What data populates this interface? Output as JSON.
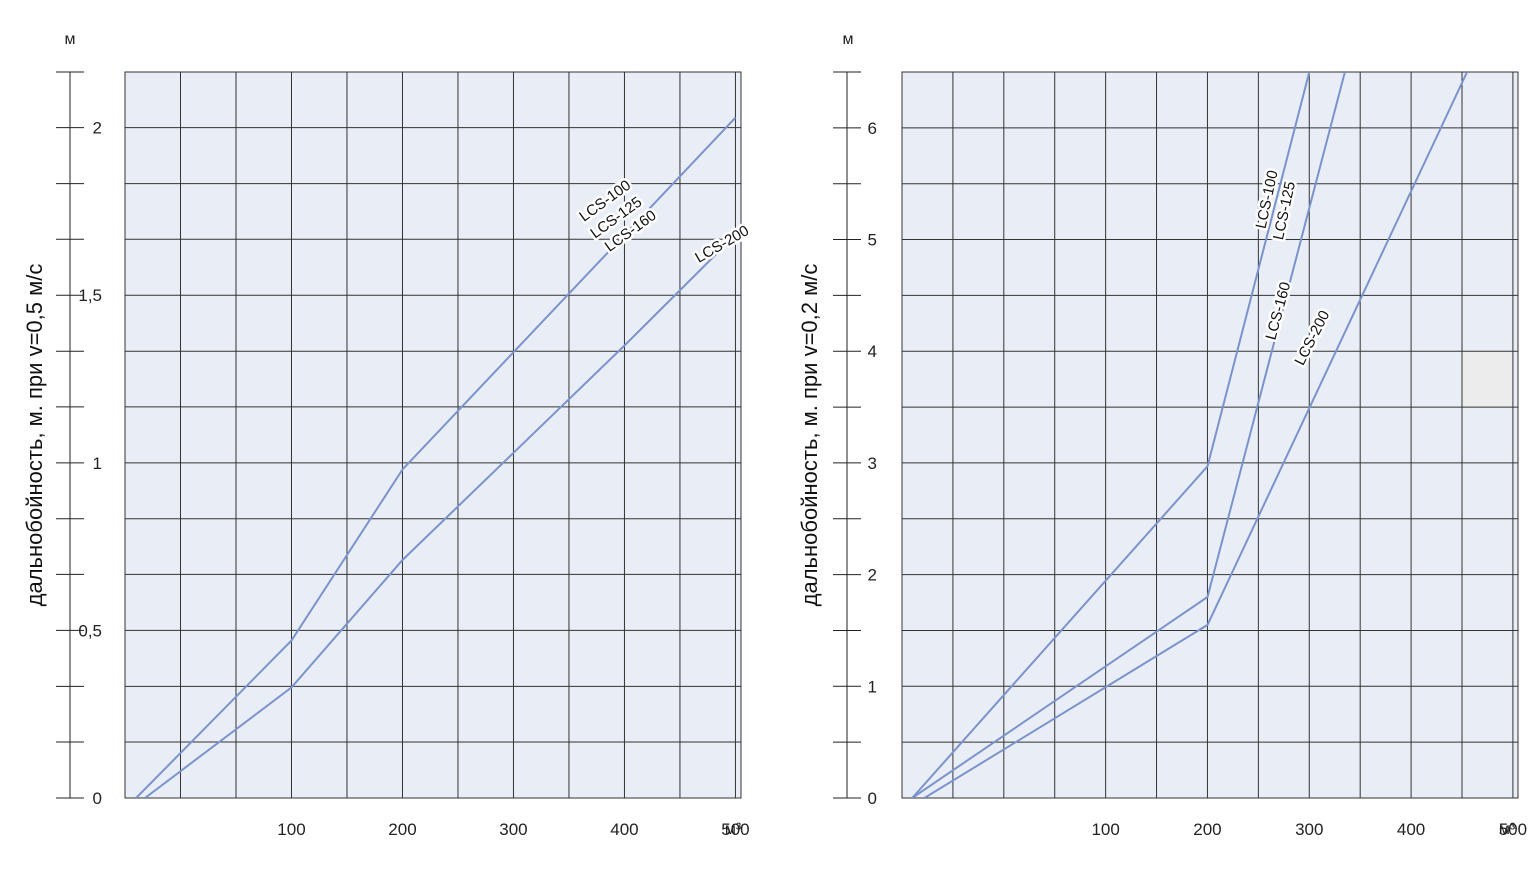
{
  "colors": {
    "plot_bg": "#e9eef6",
    "grid": "#333333",
    "line": "#7b93cc",
    "axis": "#222222",
    "highlight_cell": "#ececec"
  },
  "chart_data": [
    {
      "type": "line",
      "ylabel": "дальнобойность, м. при v=0,5 м/с",
      "y_unit": "м",
      "x_unit": "м³",
      "xlim": [
        -50,
        505
      ],
      "ylim": [
        0,
        2.166
      ],
      "x_ticks": [
        100,
        200,
        300,
        400,
        500
      ],
      "x_tick_labels": [
        "100",
        "200",
        "300",
        "400",
        "500"
      ],
      "y_ticks": [
        0,
        0.5,
        1,
        1.5,
        2
      ],
      "y_tick_labels": [
        "0",
        "0,5",
        "1",
        "1,5",
        "2"
      ],
      "grid": true,
      "series": [
        {
          "name": "LCS-100 / LCS-125 / LCS-160",
          "x": [
            -40,
            100,
            200,
            300,
            400,
            500
          ],
          "y": [
            0,
            0.47,
            0.98,
            1.33,
            1.68,
            2.03
          ]
        },
        {
          "name": "LCS-200",
          "x": [
            -32,
            100,
            200,
            300,
            400,
            500
          ],
          "y": [
            0,
            0.33,
            0.71,
            1.03,
            1.35,
            1.68
          ]
        }
      ],
      "annotations": [
        {
          "text": "LCS-100",
          "x": 385,
          "y": 1.77,
          "angle": -36
        },
        {
          "text": "LCS-125",
          "x": 395,
          "y": 1.72,
          "angle": -36
        },
        {
          "text": "LCS-160",
          "x": 408,
          "y": 1.68,
          "angle": -36
        },
        {
          "text": "LCS-200",
          "x": 490,
          "y": 1.64,
          "angle": -30
        }
      ]
    },
    {
      "type": "line",
      "ylabel": "дальнобойность, м. при v=0,2 м/с",
      "y_unit": "м",
      "x_unit": "м³",
      "xlim": [
        -100,
        505
      ],
      "ylim": [
        0,
        6.5
      ],
      "x_ticks": [
        100,
        200,
        300,
        400,
        500
      ],
      "x_tick_labels": [
        "100",
        "200",
        "300",
        "400",
        "500"
      ],
      "y_ticks": [
        0,
        1,
        2,
        3,
        4,
        5,
        6
      ],
      "y_tick_labels": [
        "0",
        "1",
        "2",
        "3",
        "4",
        "5",
        "6"
      ],
      "grid": true,
      "highlight_cell": {
        "x": [
          450,
          500
        ],
        "y": [
          3.5,
          4
        ]
      },
      "series": [
        {
          "name": "LCS-100 / LCS-125",
          "x": [
            -90,
            200,
            300
          ],
          "y": [
            0,
            2.97,
            6.5
          ]
        },
        {
          "name": "LCS-160",
          "x": [
            -90,
            200,
            335
          ],
          "y": [
            0,
            1.8,
            6.5
          ]
        },
        {
          "name": "LCS-200",
          "x": [
            -78,
            200,
            455
          ],
          "y": [
            0,
            1.55,
            6.5
          ]
        }
      ],
      "annotations": [
        {
          "text": "LCS-100",
          "x": 263,
          "y": 5.35,
          "angle": -78
        },
        {
          "text": "LCS-125",
          "x": 280,
          "y": 5.25,
          "angle": -78
        },
        {
          "text": "LCS-160",
          "x": 274,
          "y": 4.35,
          "angle": -75
        },
        {
          "text": "LCS-200",
          "x": 307,
          "y": 4.1,
          "angle": -63
        }
      ]
    }
  ]
}
